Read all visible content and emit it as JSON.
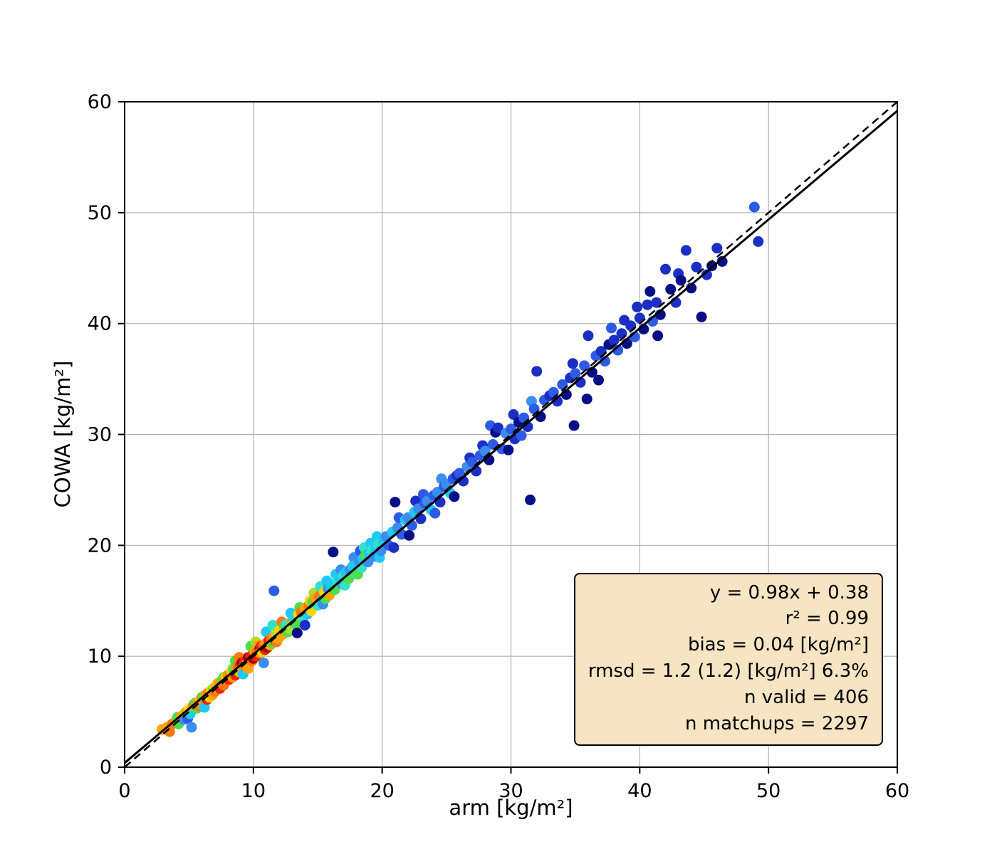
{
  "figure": {
    "background": "#ffffff"
  },
  "chart_data": {
    "type": "scatter",
    "title": "",
    "xlabel": "arm [kg/m²]",
    "ylabel": "COWA [kg/m²]",
    "xlim": [
      0,
      60
    ],
    "ylim": [
      0,
      60
    ],
    "xticks": [
      0,
      10,
      20,
      30,
      40,
      50,
      60
    ],
    "yticks": [
      0,
      10,
      20,
      30,
      40,
      50,
      60
    ],
    "grid": true,
    "grid_color": "#b0b0b0",
    "axis_color": "#000000",
    "marker_radius": 7.5,
    "identity_line": {
      "style": "dashed",
      "from": [
        0,
        0
      ],
      "to": [
        60,
        60
      ],
      "color": "#000000"
    },
    "fit_line": {
      "style": "solid",
      "slope": 0.98,
      "intercept": 0.38,
      "color": "#000000"
    },
    "palette": {
      "dr": "#aa0000",
      "r": "#ee2211",
      "do": "#ff7711",
      "o": "#ffa302",
      "y": "#ffd500",
      "yg": "#aadd33",
      "g": "#4ade4a",
      "t": "#35e0c8",
      "c": "#1ec9f5",
      "lb": "#3c8df0",
      "b": "#2e5be6",
      "db": "#1b2fc4",
      "n": "#070f86"
    },
    "points": [
      [
        2.9,
        3.4,
        "o"
      ],
      [
        3.3,
        3.6,
        "o"
      ],
      [
        3.5,
        3.2,
        "do"
      ],
      [
        3.7,
        3.9,
        "do"
      ],
      [
        4.0,
        4.2,
        "o"
      ],
      [
        4.1,
        4.5,
        "g"
      ],
      [
        4.2,
        3.9,
        "g"
      ],
      [
        4.4,
        4.6,
        "o"
      ],
      [
        4.6,
        4.3,
        "lb"
      ],
      [
        4.7,
        4.9,
        "yg"
      ],
      [
        4.8,
        5.0,
        "o"
      ],
      [
        4.9,
        4.4,
        "b"
      ],
      [
        5.0,
        5.2,
        "y"
      ],
      [
        5.1,
        4.8,
        "c"
      ],
      [
        5.2,
        3.6,
        "lb"
      ],
      [
        5.3,
        5.5,
        "o"
      ],
      [
        5.4,
        5.7,
        "do"
      ],
      [
        5.5,
        5.8,
        "g"
      ],
      [
        5.6,
        5.3,
        "g"
      ],
      [
        5.7,
        5.9,
        "o"
      ],
      [
        5.8,
        5.5,
        "do"
      ],
      [
        5.9,
        6.1,
        "y"
      ],
      [
        6.0,
        5.7,
        "o"
      ],
      [
        6.0,
        6.3,
        "do"
      ],
      [
        6.1,
        6.4,
        "g"
      ],
      [
        6.2,
        5.4,
        "c"
      ],
      [
        6.3,
        6.5,
        "o"
      ],
      [
        6.4,
        6.1,
        "r"
      ],
      [
        6.5,
        6.7,
        "do"
      ],
      [
        6.6,
        6.3,
        "y"
      ],
      [
        6.7,
        6.9,
        "y"
      ],
      [
        6.8,
        6.5,
        "o"
      ],
      [
        6.9,
        7.1,
        "g"
      ],
      [
        7.0,
        6.8,
        "do"
      ],
      [
        7.0,
        7.2,
        "y"
      ],
      [
        7.1,
        7.3,
        "o"
      ],
      [
        7.2,
        7.5,
        "yg"
      ],
      [
        7.3,
        7.6,
        "o"
      ],
      [
        7.4,
        7.1,
        "r"
      ],
      [
        7.5,
        7.7,
        "o"
      ],
      [
        7.6,
        7.9,
        "g"
      ],
      [
        7.7,
        7.4,
        "do"
      ],
      [
        7.7,
        8.1,
        "g"
      ],
      [
        7.8,
        8.0,
        "o"
      ],
      [
        7.9,
        8.2,
        "y"
      ],
      [
        8.0,
        8.3,
        "o"
      ],
      [
        8.1,
        7.9,
        "r"
      ],
      [
        8.2,
        8.4,
        "do"
      ],
      [
        8.3,
        8.6,
        "y"
      ],
      [
        8.4,
        8.1,
        "o"
      ],
      [
        8.4,
        8.9,
        "yg"
      ],
      [
        8.5,
        8.8,
        "g"
      ],
      [
        8.6,
        8.3,
        "r"
      ],
      [
        8.6,
        9.6,
        "g"
      ],
      [
        8.7,
        8.9,
        "o"
      ],
      [
        8.8,
        9.1,
        "do"
      ],
      [
        8.9,
        8.6,
        "yg"
      ],
      [
        8.9,
        9.9,
        "do"
      ],
      [
        9.0,
        9.2,
        "r"
      ],
      [
        9.0,
        8.8,
        "o"
      ],
      [
        9.1,
        9.4,
        "dr"
      ],
      [
        9.2,
        9.0,
        "o"
      ],
      [
        9.2,
        8.4,
        "c"
      ],
      [
        9.3,
        9.5,
        "r"
      ],
      [
        9.4,
        9.1,
        "do"
      ],
      [
        9.5,
        9.7,
        "r"
      ],
      [
        9.5,
        9.3,
        "y"
      ],
      [
        9.6,
        9.9,
        "dr"
      ],
      [
        9.6,
        8.9,
        "o"
      ],
      [
        9.7,
        9.4,
        "o"
      ],
      [
        9.8,
        10.0,
        "r"
      ],
      [
        9.8,
        10.9,
        "g"
      ],
      [
        9.9,
        9.6,
        "do"
      ],
      [
        10.0,
        10.2,
        "r"
      ],
      [
        10.0,
        9.8,
        "dr"
      ],
      [
        10.1,
        10.4,
        "o"
      ],
      [
        10.2,
        10.0,
        "r"
      ],
      [
        10.2,
        11.3,
        "yg"
      ],
      [
        10.3,
        10.5,
        "do"
      ],
      [
        10.4,
        10.1,
        "r"
      ],
      [
        10.4,
        11.0,
        "o"
      ],
      [
        10.5,
        10.7,
        "dr"
      ],
      [
        10.5,
        10.3,
        "o"
      ],
      [
        10.6,
        10.9,
        "r"
      ],
      [
        10.7,
        10.4,
        "y"
      ],
      [
        10.8,
        11.0,
        "do"
      ],
      [
        10.8,
        9.4,
        "lb"
      ],
      [
        10.9,
        10.6,
        "r"
      ],
      [
        11.0,
        11.2,
        "o"
      ],
      [
        11.0,
        12.2,
        "c"
      ],
      [
        11.1,
        10.8,
        "dr"
      ],
      [
        11.2,
        11.4,
        "r"
      ],
      [
        11.3,
        11.0,
        "o"
      ],
      [
        11.4,
        11.6,
        "do"
      ],
      [
        11.5,
        11.2,
        "g"
      ],
      [
        11.5,
        12.8,
        "t"
      ],
      [
        11.6,
        11.8,
        "o"
      ],
      [
        11.6,
        15.9,
        "b"
      ],
      [
        11.7,
        11.4,
        "r"
      ],
      [
        11.8,
        12.0,
        "yg"
      ],
      [
        11.8,
        11.3,
        "do"
      ],
      [
        11.9,
        11.6,
        "o"
      ],
      [
        12.0,
        11.7,
        "o"
      ],
      [
        12.0,
        12.3,
        "y"
      ],
      [
        12.1,
        12.4,
        "y"
      ],
      [
        12.2,
        13.1,
        "do"
      ],
      [
        12.3,
        12.0,
        "o"
      ],
      [
        12.4,
        12.7,
        "g"
      ],
      [
        12.6,
        12.9,
        "t"
      ],
      [
        12.7,
        12.2,
        "g"
      ],
      [
        12.8,
        12.5,
        "yg"
      ],
      [
        12.9,
        13.9,
        "c"
      ],
      [
        13.0,
        13.2,
        "o"
      ],
      [
        13.1,
        13.5,
        "c"
      ],
      [
        13.2,
        13.0,
        "t"
      ],
      [
        13.3,
        12.9,
        "g"
      ],
      [
        13.4,
        12.1,
        "n"
      ],
      [
        13.5,
        13.8,
        "y"
      ],
      [
        13.6,
        14.4,
        "g"
      ],
      [
        13.7,
        14.0,
        "do"
      ],
      [
        13.9,
        13.5,
        "t"
      ],
      [
        14.0,
        14.3,
        "o"
      ],
      [
        14.0,
        12.8,
        "db"
      ],
      [
        14.2,
        13.8,
        "c"
      ],
      [
        14.3,
        14.6,
        "do"
      ],
      [
        14.4,
        15.0,
        "y"
      ],
      [
        14.5,
        14.1,
        "y"
      ],
      [
        14.6,
        14.9,
        "g"
      ],
      [
        14.7,
        15.7,
        "yg"
      ],
      [
        14.8,
        15.2,
        "o"
      ],
      [
        15.0,
        14.6,
        "t"
      ],
      [
        15.1,
        15.4,
        "do"
      ],
      [
        15.2,
        16.3,
        "t"
      ],
      [
        15.3,
        15.0,
        "c"
      ],
      [
        15.4,
        14.7,
        "lb"
      ],
      [
        15.5,
        15.8,
        "y"
      ],
      [
        15.6,
        15.2,
        "g"
      ],
      [
        15.7,
        16.8,
        "c"
      ],
      [
        15.8,
        16.1,
        "lb"
      ],
      [
        15.9,
        15.5,
        "o"
      ],
      [
        16.0,
        16.3,
        "c"
      ],
      [
        16.2,
        19.4,
        "n"
      ],
      [
        16.3,
        16.0,
        "g"
      ],
      [
        16.4,
        17.4,
        "c"
      ],
      [
        16.5,
        16.8,
        "t"
      ],
      [
        16.7,
        17.0,
        "c"
      ],
      [
        16.8,
        17.8,
        "lb"
      ],
      [
        16.9,
        16.5,
        "lb"
      ],
      [
        17.0,
        17.3,
        "t"
      ],
      [
        17.1,
        16.4,
        "t"
      ],
      [
        17.2,
        17.6,
        "c"
      ],
      [
        17.4,
        17.0,
        "g"
      ],
      [
        17.5,
        17.8,
        "lb"
      ],
      [
        17.7,
        18.1,
        "c"
      ],
      [
        17.8,
        18.9,
        "lb"
      ],
      [
        17.9,
        17.5,
        "t"
      ],
      [
        18.0,
        18.3,
        "c"
      ],
      [
        18.1,
        17.4,
        "g"
      ],
      [
        18.2,
        18.6,
        "lb"
      ],
      [
        18.3,
        19.5,
        "b"
      ],
      [
        18.4,
        18.0,
        "t"
      ],
      [
        18.5,
        18.8,
        "c"
      ],
      [
        18.6,
        19.8,
        "t"
      ],
      [
        18.7,
        19.1,
        "g"
      ],
      [
        18.9,
        18.5,
        "lb"
      ],
      [
        19.0,
        19.3,
        "c"
      ],
      [
        19.1,
        20.2,
        "c"
      ],
      [
        19.2,
        19.6,
        "t"
      ],
      [
        19.4,
        19.0,
        "lb"
      ],
      [
        19.5,
        19.8,
        "c"
      ],
      [
        19.6,
        20.8,
        "c"
      ],
      [
        19.7,
        20.1,
        "t"
      ],
      [
        19.8,
        18.9,
        "c"
      ],
      [
        19.9,
        19.5,
        "lb"
      ],
      [
        20.1,
        20.4,
        "c"
      ],
      [
        20.3,
        20.8,
        "lb"
      ],
      [
        20.5,
        20.0,
        "b"
      ],
      [
        20.8,
        21.2,
        "c"
      ],
      [
        20.9,
        19.8,
        "db"
      ],
      [
        21.0,
        23.9,
        "n"
      ],
      [
        21.2,
        21.6,
        "lb"
      ],
      [
        21.3,
        22.5,
        "b"
      ],
      [
        21.5,
        21.0,
        "b"
      ],
      [
        21.8,
        22.3,
        "c"
      ],
      [
        22.0,
        22.5,
        "lb"
      ],
      [
        22.1,
        20.9,
        "n"
      ],
      [
        22.3,
        21.8,
        "b"
      ],
      [
        22.5,
        23.0,
        "c"
      ],
      [
        22.6,
        24.0,
        "db"
      ],
      [
        22.8,
        23.3,
        "lb"
      ],
      [
        23.0,
        22.4,
        "db"
      ],
      [
        23.2,
        24.6,
        "b"
      ],
      [
        23.3,
        23.8,
        "b"
      ],
      [
        23.5,
        24.0,
        "lb"
      ],
      [
        23.8,
        23.2,
        "c"
      ],
      [
        24.0,
        24.5,
        "b"
      ],
      [
        24.1,
        22.9,
        "b"
      ],
      [
        24.3,
        24.8,
        "lb"
      ],
      [
        24.5,
        23.9,
        "db"
      ],
      [
        24.6,
        26.0,
        "lb"
      ],
      [
        24.8,
        25.3,
        "b"
      ],
      [
        25.0,
        25.5,
        "lb"
      ],
      [
        25.3,
        24.7,
        "c"
      ],
      [
        25.5,
        26.0,
        "b"
      ],
      [
        25.6,
        24.4,
        "n"
      ],
      [
        25.8,
        26.3,
        "db"
      ],
      [
        26.0,
        26.5,
        "b"
      ],
      [
        26.3,
        25.8,
        "db"
      ],
      [
        26.6,
        27.1,
        "lb"
      ],
      [
        26.8,
        27.9,
        "db"
      ],
      [
        27.0,
        27.5,
        "b"
      ],
      [
        27.3,
        26.7,
        "db"
      ],
      [
        27.6,
        28.1,
        "b"
      ],
      [
        27.8,
        29.0,
        "db"
      ],
      [
        28.0,
        28.5,
        "lb"
      ],
      [
        28.3,
        27.7,
        "n"
      ],
      [
        28.4,
        30.8,
        "b"
      ],
      [
        28.6,
        29.1,
        "b"
      ],
      [
        28.8,
        30.2,
        "n"
      ],
      [
        29.0,
        30.6,
        "db"
      ],
      [
        29.3,
        28.7,
        "b"
      ],
      [
        29.6,
        30.1,
        "lb"
      ],
      [
        29.8,
        28.6,
        "n"
      ],
      [
        30.0,
        30.5,
        "b"
      ],
      [
        30.2,
        31.8,
        "db"
      ],
      [
        30.3,
        29.6,
        "db"
      ],
      [
        30.6,
        31.1,
        "n"
      ],
      [
        30.8,
        29.9,
        "b"
      ],
      [
        31.0,
        31.5,
        "b"
      ],
      [
        31.3,
        30.7,
        "db"
      ],
      [
        31.5,
        24.1,
        "n"
      ],
      [
        31.6,
        33.0,
        "lb"
      ],
      [
        31.8,
        32.3,
        "b"
      ],
      [
        32.0,
        35.7,
        "db"
      ],
      [
        32.3,
        31.6,
        "n"
      ],
      [
        32.6,
        33.1,
        "b"
      ],
      [
        33.0,
        33.5,
        "db"
      ],
      [
        33.3,
        33.8,
        "b"
      ],
      [
        33.6,
        33.0,
        "db"
      ],
      [
        34.0,
        34.5,
        "b"
      ],
      [
        34.3,
        33.6,
        "n"
      ],
      [
        34.6,
        35.1,
        "db"
      ],
      [
        34.8,
        36.4,
        "db"
      ],
      [
        34.9,
        30.8,
        "n"
      ],
      [
        35.0,
        35.5,
        "b"
      ],
      [
        35.4,
        34.7,
        "db"
      ],
      [
        35.7,
        36.2,
        "b"
      ],
      [
        35.9,
        33.2,
        "n"
      ],
      [
        36.0,
        38.9,
        "db"
      ],
      [
        36.3,
        35.6,
        "n"
      ],
      [
        36.6,
        37.1,
        "b"
      ],
      [
        36.8,
        34.9,
        "n"
      ],
      [
        37.0,
        37.5,
        "db"
      ],
      [
        37.3,
        36.6,
        "b"
      ],
      [
        37.6,
        38.1,
        "n"
      ],
      [
        37.8,
        39.6,
        "b"
      ],
      [
        38.0,
        38.5,
        "db"
      ],
      [
        38.3,
        37.6,
        "b"
      ],
      [
        38.6,
        39.1,
        "db"
      ],
      [
        38.8,
        40.3,
        "db"
      ],
      [
        39.0,
        38.2,
        "n"
      ],
      [
        39.3,
        39.8,
        "db"
      ],
      [
        39.6,
        38.8,
        "b"
      ],
      [
        39.8,
        41.5,
        "db"
      ],
      [
        40.0,
        40.5,
        "db"
      ],
      [
        40.3,
        39.5,
        "n"
      ],
      [
        40.6,
        41.7,
        "db"
      ],
      [
        40.8,
        42.9,
        "n"
      ],
      [
        41.0,
        40.2,
        "b"
      ],
      [
        41.3,
        41.9,
        "db"
      ],
      [
        41.4,
        38.9,
        "n"
      ],
      [
        41.6,
        40.8,
        "n"
      ],
      [
        42.0,
        44.9,
        "db"
      ],
      [
        42.4,
        43.1,
        "n"
      ],
      [
        42.8,
        41.9,
        "db"
      ],
      [
        43.0,
        44.5,
        "db"
      ],
      [
        43.2,
        43.9,
        "n"
      ],
      [
        43.6,
        46.6,
        "db"
      ],
      [
        44.0,
        43.2,
        "n"
      ],
      [
        44.4,
        45.1,
        "db"
      ],
      [
        44.8,
        40.6,
        "n"
      ],
      [
        45.2,
        44.4,
        "db"
      ],
      [
        45.6,
        45.2,
        "n"
      ],
      [
        46.0,
        46.8,
        "db"
      ],
      [
        46.4,
        45.6,
        "n"
      ],
      [
        48.9,
        50.5,
        "b"
      ],
      [
        49.2,
        47.4,
        "db"
      ]
    ]
  },
  "stats_box": {
    "background": "#f6e4c3",
    "border_color": "#000000",
    "lines": [
      "y = 0.98x + 0.38",
      "r² = 0.99",
      "bias = 0.04 [kg/m²]",
      "rmsd = 1.2 (1.2) [kg/m²] 6.3%",
      "n valid = 406",
      "n matchups = 2297"
    ]
  }
}
